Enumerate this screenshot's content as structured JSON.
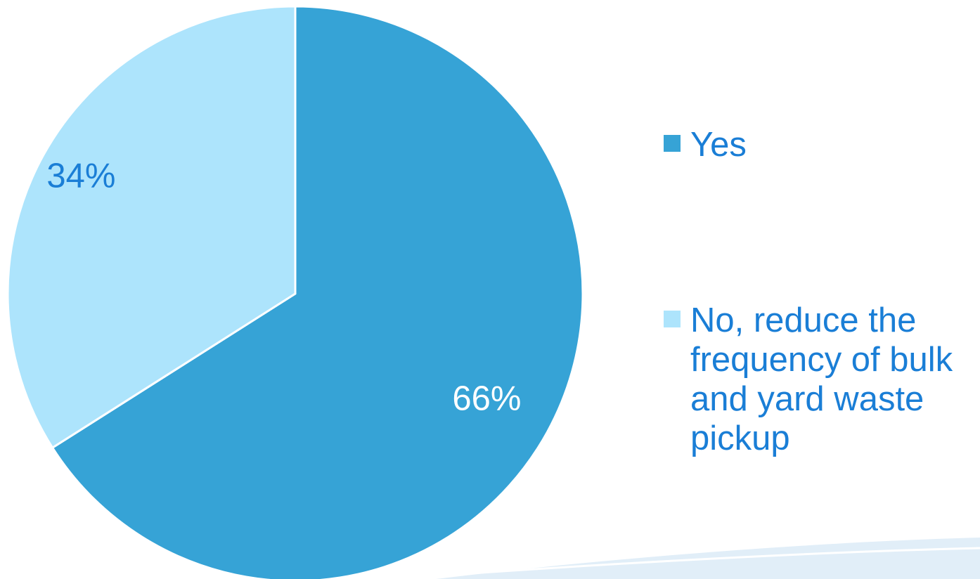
{
  "chart_data": {
    "type": "pie",
    "title": "",
    "slices": [
      {
        "label": "Yes",
        "value": 66,
        "display": "66%",
        "color": "#36a3d6",
        "label_color": "#ffffff"
      },
      {
        "label": "No, reduce the frequency of bulk and yard waste pickup",
        "value": 34,
        "display": "34%",
        "color": "#ade4fc",
        "label_color": "#1a7ed6"
      }
    ],
    "start_angle_deg": 0,
    "direction": "clockwise",
    "legend_position": "right"
  }
}
